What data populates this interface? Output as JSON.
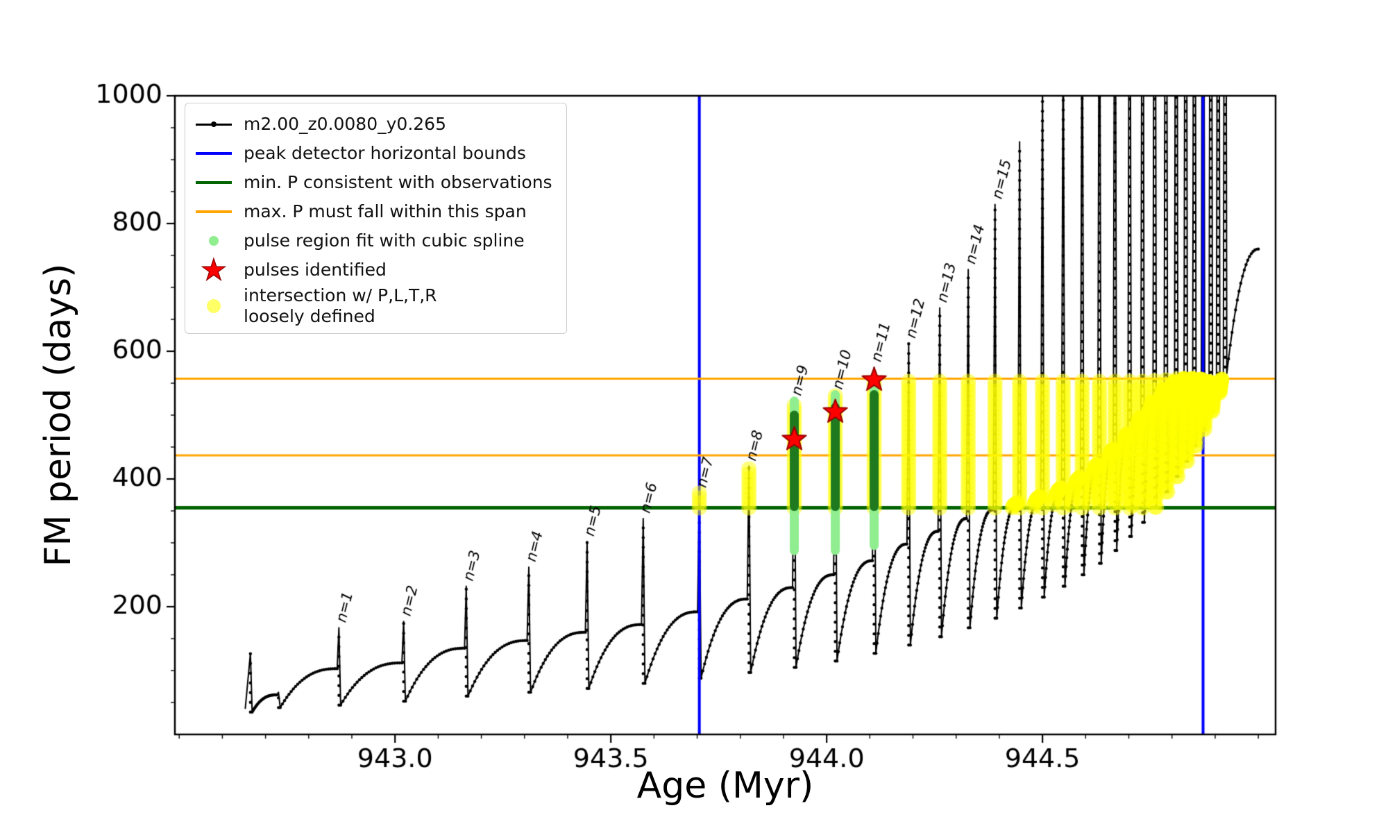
{
  "figure": {
    "background": "#ffffff"
  },
  "chart_data": {
    "type": "line",
    "title": "",
    "xlabel": "Age (Myr)",
    "ylabel": "FM period (days)",
    "xlim": [
      942.49,
      945.04
    ],
    "ylim": [
      0,
      1000
    ],
    "grid": false,
    "legend_position": "upper-left",
    "xticks": {
      "values": [
        943.0,
        943.5,
        944.0,
        944.5
      ],
      "labels": [
        "943.0",
        "943.5",
        "944.0",
        "944.5"
      ],
      "minor_step": 0.1
    },
    "yticks": {
      "values": [
        200,
        400,
        600,
        800,
        1000
      ],
      "labels": [
        "200",
        "400",
        "600",
        "800",
        "1000"
      ],
      "minor_step": 50
    },
    "series": {
      "name": "m2.00_z0.0080_y0.265",
      "color": "#000000",
      "marker": "point",
      "pulses": [
        {
          "label": "",
          "age": 942.665,
          "pre": 40,
          "peak": 127,
          "post": 35
        },
        {
          "label": "",
          "age": 942.73,
          "pre": 62,
          "peak": 66,
          "post": 42
        },
        {
          "label": "n=1",
          "age": 942.87,
          "pre": 103,
          "peak": 167,
          "post": 46
        },
        {
          "label": "n=2",
          "age": 943.02,
          "pre": 112,
          "peak": 177,
          "post": 52
        },
        {
          "label": "n=3",
          "age": 943.165,
          "pre": 135,
          "peak": 232,
          "post": 60
        },
        {
          "label": "n=4",
          "age": 943.31,
          "pre": 147,
          "peak": 262,
          "post": 66
        },
        {
          "label": "n=5",
          "age": 943.445,
          "pre": 160,
          "peak": 302,
          "post": 72
        },
        {
          "label": "n=6",
          "age": 943.575,
          "pre": 172,
          "peak": 338,
          "post": 80
        },
        {
          "label": "n=7",
          "age": 943.705,
          "pre": 192,
          "peak": 378,
          "post": 88
        },
        {
          "label": "n=8",
          "age": 943.82,
          "pre": 212,
          "peak": 420,
          "post": 97
        },
        {
          "label": "n=9",
          "age": 943.925,
          "pre": 230,
          "peak": 522,
          "post": 105
        },
        {
          "label": "n=10",
          "age": 944.02,
          "pre": 250,
          "peak": 532,
          "post": 115
        },
        {
          "label": "n=11",
          "age": 944.11,
          "pre": 272,
          "peak": 575,
          "post": 127
        },
        {
          "label": "n=12",
          "age": 944.19,
          "pre": 298,
          "peak": 612,
          "post": 140
        },
        {
          "label": "n=13",
          "age": 944.262,
          "pre": 318,
          "peak": 668,
          "post": 153
        },
        {
          "label": "n=14",
          "age": 944.328,
          "pre": 338,
          "peak": 728,
          "post": 167
        },
        {
          "label": "n=15",
          "age": 944.39,
          "pre": 352,
          "peak": 830,
          "post": 182
        },
        {
          "label": "",
          "age": 944.447,
          "pre": 362,
          "peak": 928,
          "post": 198
        },
        {
          "label": "",
          "age": 944.5,
          "pre": 372,
          "peak": 1040,
          "post": 215
        },
        {
          "label": "",
          "age": 944.548,
          "pre": 385,
          "peak": 1150,
          "post": 232
        },
        {
          "label": "",
          "age": 944.592,
          "pre": 402,
          "peak": 1260,
          "post": 250
        },
        {
          "label": "",
          "age": 944.632,
          "pre": 422,
          "peak": 1380,
          "post": 268
        },
        {
          "label": "",
          "age": 944.668,
          "pre": 446,
          "peak": 1500,
          "post": 288
        },
        {
          "label": "",
          "age": 944.702,
          "pre": 470,
          "peak": 1620,
          "post": 310
        },
        {
          "label": "",
          "age": 944.732,
          "pre": 496,
          "peak": 1750,
          "post": 332
        },
        {
          "label": "",
          "age": 944.76,
          "pre": 520,
          "peak": 1880,
          "post": 356
        },
        {
          "label": "",
          "age": 944.786,
          "pre": 540,
          "peak": 2000,
          "post": 380
        },
        {
          "label": "",
          "age": 944.81,
          "pre": 552,
          "peak": 2000,
          "post": 404
        },
        {
          "label": "",
          "age": 944.832,
          "pre": 557,
          "peak": 2000,
          "post": 428
        },
        {
          "label": "",
          "age": 944.852,
          "pre": 557,
          "peak": 2000,
          "post": 452
        },
        {
          "label": "",
          "age": 944.872,
          "pre": 556,
          "peak": 2000,
          "post": 478
        },
        {
          "label": "",
          "age": 944.89,
          "pre": 552,
          "peak": 2000,
          "post": 506
        },
        {
          "label": "",
          "age": 944.907,
          "pre": 547,
          "peak": 2000,
          "post": 535
        },
        {
          "label": "",
          "age": 944.923,
          "pre": 560,
          "peak": 2000,
          "post": 565
        }
      ],
      "tail": {
        "age": 945.0,
        "value": 760
      }
    },
    "peak_detector_bounds": {
      "label": "peak detector horizontal bounds",
      "color": "#0000ff",
      "x_values": [
        943.705,
        944.872
      ]
    },
    "min_p_line": {
      "label": "min. P consistent with observations",
      "color": "#006400",
      "y": 355
    },
    "max_p_span_lines": {
      "label": "max. P must fall within this span",
      "color": "#ffa500",
      "y_values": [
        437,
        557
      ]
    },
    "spline_regions": {
      "label": "pulse region fit with cubic spline",
      "color_light": "#90ee90",
      "color_dense": "#1f7a1f",
      "segments": [
        {
          "age": 943.925,
          "y_min": 288,
          "y_max": 522,
          "dense_min": 357,
          "dense_max": 500
        },
        {
          "age": 944.02,
          "y_min": 288,
          "y_max": 532,
          "dense_min": 357,
          "dense_max": 512
        },
        {
          "age": 944.11,
          "y_min": 296,
          "y_max": 558,
          "dense_min": 357,
          "dense_max": 532
        }
      ]
    },
    "pulses_identified": {
      "label": "pulses identified",
      "color": "#ff0000",
      "points": [
        [
          943.925,
          462
        ],
        [
          944.02,
          505
        ],
        [
          944.11,
          555
        ]
      ]
    },
    "intersection": {
      "label": "intersection w/ P,L,T,R\nloosely defined",
      "color": "#ffff00",
      "y_min": 355,
      "y_max": 557,
      "x_min": 943.69
    }
  },
  "legend": {
    "entries": [
      {
        "label": "m2.00_z0.0080_y0.265",
        "marker": "line-dot",
        "color": "#000000"
      },
      {
        "label": "peak detector horizontal bounds",
        "marker": "line",
        "color": "#0000ff"
      },
      {
        "label": "min. P consistent with observations",
        "marker": "line",
        "color": "#006400"
      },
      {
        "label": "max. P must fall within this span",
        "marker": "line",
        "color": "#ffa500"
      },
      {
        "label": "pulse region fit with cubic spline",
        "marker": "dot",
        "color": "#90ee90"
      },
      {
        "label": "pulses identified",
        "marker": "star",
        "color": "#ff0000",
        "glyph": "★"
      },
      {
        "label": "intersection w/ P,L,T,R\nloosely defined",
        "marker": "dot-faint",
        "color": "#ffff00"
      }
    ]
  }
}
